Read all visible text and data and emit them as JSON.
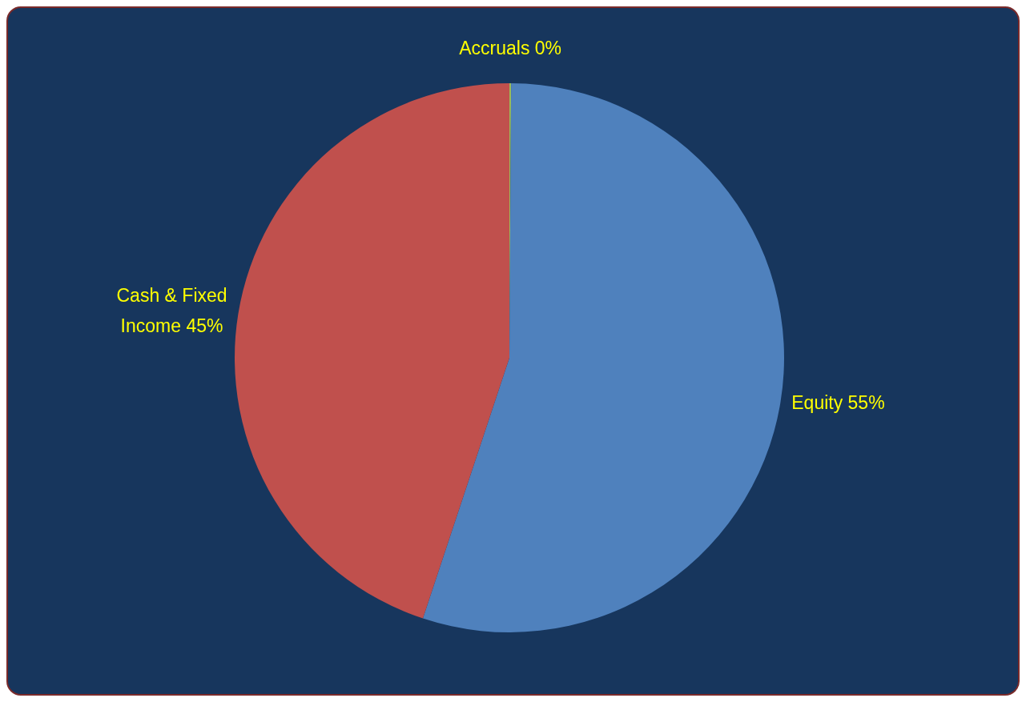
{
  "chart_data": {
    "type": "pie",
    "categories": [
      "Accruals",
      "Equity",
      "Cash & Fixed Income"
    ],
    "values": [
      0.1,
      55,
      44.9
    ],
    "value_labels": [
      "0%",
      "55%",
      "45%"
    ],
    "colors": [
      "#9bbb59",
      "#4f81bd",
      "#c0504d"
    ]
  }
}
